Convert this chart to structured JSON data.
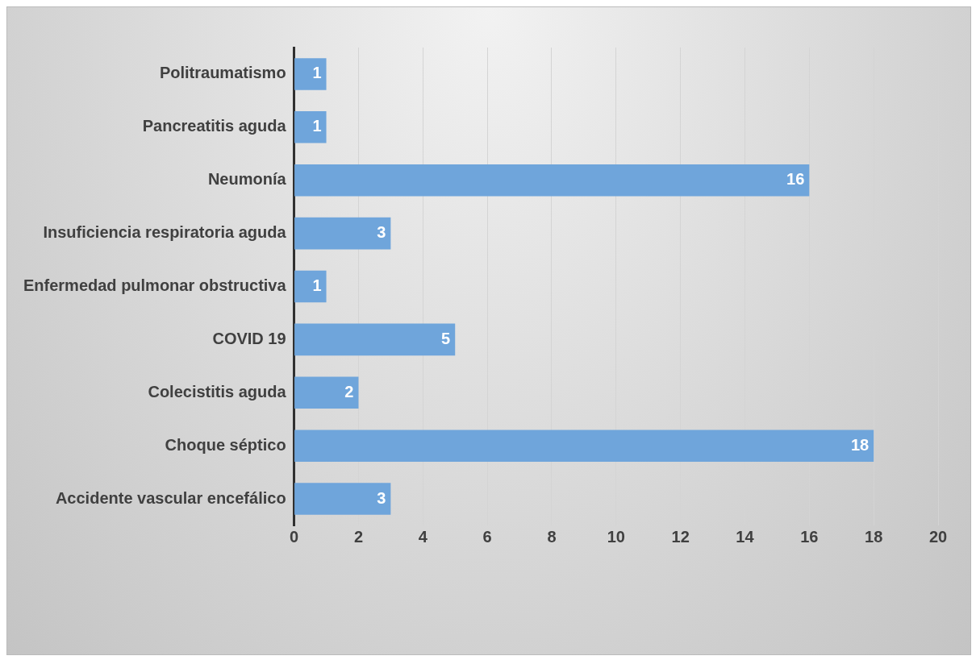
{
  "chart_data": {
    "type": "bar",
    "orientation": "horizontal",
    "categories": [
      "Politraumatismo",
      "Pancreatitis aguda",
      "Neumonía",
      "Insuficiencia respiratoria aguda",
      "Enfermedad pulmonar obstructiva",
      "COVID 19",
      "Colecistitis aguda",
      "Choque séptico",
      "Accidente vascular encefálico"
    ],
    "values": [
      1,
      1,
      16,
      3,
      1,
      5,
      2,
      18,
      3
    ],
    "color": "#6fa5db",
    "xlim": [
      0,
      20
    ],
    "xticks": [
      0,
      2,
      4,
      6,
      8,
      10,
      12,
      14,
      16,
      18,
      20
    ],
    "grid": "x",
    "data_labels": true,
    "legend": false
  }
}
